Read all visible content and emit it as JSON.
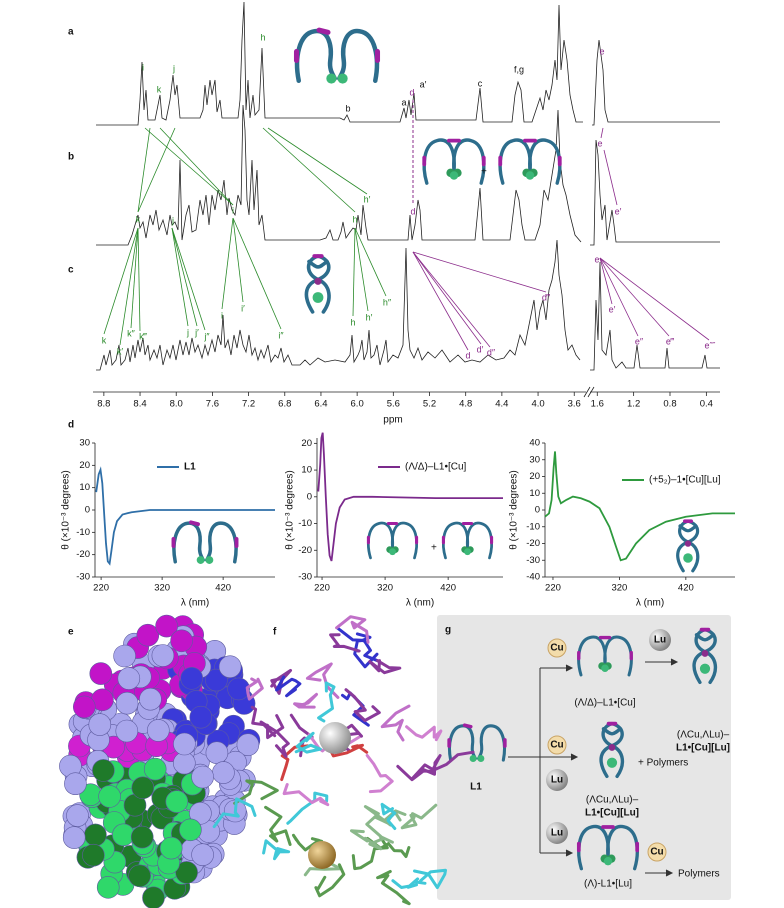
{
  "panel_labels": [
    "a",
    "b",
    "c",
    "d",
    "e",
    "f",
    "g"
  ],
  "nmr": {
    "x_label": "ppm",
    "xlims": [
      [
        8.92,
        3.47
      ],
      [
        1.68,
        0.25
      ]
    ],
    "xticks": [
      8.8,
      8.4,
      {
        "value": 8,
        "label": "8.0"
      },
      7.6,
      7.2,
      6.8,
      6.4,
      {
        "value": 6,
        "label": "6.0"
      },
      5.6,
      5.2,
      4.8,
      4.4,
      {
        "value": 4,
        "label": "4.0"
      },
      3.6,
      1.6,
      1.2,
      0.8,
      0.4
    ],
    "spectra": [
      {
        "peaks": [
          "i",
          "k",
          "j",
          "h",
          "b",
          "a",
          "d",
          "a′",
          "c",
          "f,g",
          "e"
        ]
      },
      {
        "peaks": [
          "k",
          "j",
          "i",
          "h",
          "h′",
          "d",
          "e",
          "e′"
        ]
      },
      {
        "peaks": [
          "k",
          "k′",
          "k″",
          "k‴",
          "j",
          "j′",
          "j″",
          "i",
          "i′",
          "i″",
          "h",
          "h′",
          "h″",
          "d",
          "d′",
          "d″",
          "d‴",
          "e",
          "e′",
          "e″",
          "e‴",
          "e⁗"
        ]
      }
    ]
  },
  "chart_data": [
    {
      "type": "line",
      "xlim": [
        210,
        505
      ],
      "ylim": [
        -30,
        30
      ],
      "xticks": [
        220,
        320,
        420
      ],
      "yticks": [
        30,
        20,
        10,
        0,
        -10,
        -20,
        -30
      ],
      "x_label": "λ (nm)",
      "y_label": "θ (×10⁻³ degrees)",
      "legend": "upper right",
      "x": [
        212,
        216,
        219,
        222,
        225,
        228,
        231,
        234,
        237,
        241,
        246,
        255,
        270,
        300,
        350,
        420,
        505
      ],
      "series": [
        {
          "name": "L1",
          "color": "#2f6fa8",
          "values": [
            8,
            16,
            18,
            12,
            -2,
            -15,
            -23,
            -24,
            -18,
            -10,
            -5,
            -2,
            -1,
            0,
            0,
            0,
            0
          ]
        }
      ]
    },
    {
      "type": "line",
      "xlim": [
        212,
        507
      ],
      "ylim": [
        -30,
        22
      ],
      "xticks": [
        220,
        320,
        420
      ],
      "yticks": [
        20,
        10,
        0,
        -10,
        -20,
        -30
      ],
      "x_label": "λ (nm)",
      "y_label": "θ (×10⁻³ degrees)",
      "legend": "upper right",
      "x": [
        214,
        217,
        219,
        221,
        223,
        226,
        229,
        232,
        235,
        238,
        242,
        248,
        256,
        270,
        300,
        400,
        507
      ],
      "series": [
        {
          "name": "(Λ/Δ)–L1•[Cu]",
          "color": "#7b2a8c",
          "values": [
            2,
            12,
            22,
            24,
            16,
            0,
            -14,
            -22,
            -24,
            -18,
            -10,
            -4,
            -1,
            0,
            0,
            -0.5,
            -0.5
          ]
        }
      ]
    },
    {
      "type": "line",
      "xlim": [
        208,
        494
      ],
      "ylim": [
        -40,
        40
      ],
      "xticks": [
        220,
        320,
        420
      ],
      "yticks": [
        40,
        30,
        20,
        10,
        0,
        -10,
        -20,
        -30,
        -40
      ],
      "x_label": "λ (nm)",
      "y_label": "θ (×10⁻³ degrees)",
      "legend": "upper right",
      "x": [
        208,
        214,
        218,
        221,
        223,
        225,
        228,
        232,
        240,
        250,
        262,
        275,
        290,
        305,
        315,
        322,
        330,
        345,
        365,
        390,
        420,
        460,
        494
      ],
      "series": [
        {
          "name": "(+5₂)–1•[Cu][Lu]",
          "color": "#2e9a3e",
          "values": [
            -4,
            -2,
            6,
            25,
            35,
            22,
            8,
            4,
            6,
            8,
            7,
            5,
            1,
            -10,
            -22,
            -30,
            -29,
            -20,
            -12,
            -7,
            -4,
            -2,
            -2
          ]
        }
      ]
    }
  ],
  "scheme": {
    "start": "L1",
    "rows": [
      {
        "reagents": [
          "Cu"
        ],
        "product": [
          "(Λ/Δ)–L1•[Cu]"
        ],
        "next_reagent": "Lu",
        "next_product": [
          "(ΛCu,ΛLu)–",
          "L1•[Cu][Lu]"
        ]
      },
      {
        "reagents": [
          "Cu",
          "Lu"
        ],
        "product": [
          "(ΛCu,ΛLu)–",
          "L1•[Cu][Lu]"
        ],
        "extra": "+ Polymers"
      },
      {
        "reagents": [
          "Lu"
        ],
        "product": [
          "(Λ)-L1•[Lu]"
        ],
        "next_reagent": "Cu",
        "next_product": [
          "Polymers"
        ]
      }
    ]
  }
}
